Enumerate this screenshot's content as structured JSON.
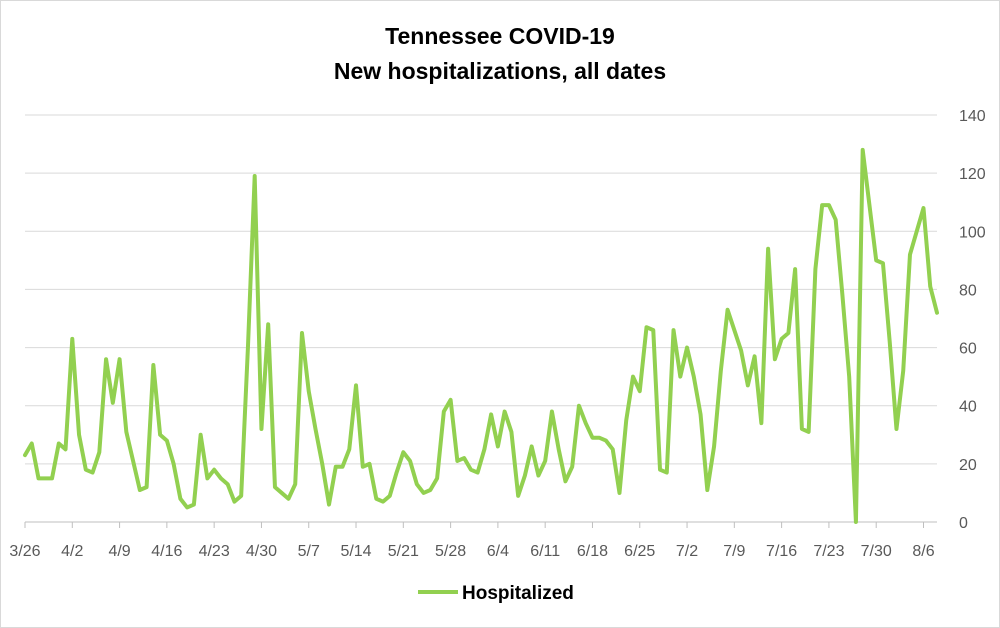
{
  "chart_data": {
    "type": "line",
    "title": "Tennessee COVID-19",
    "subtitle": "New hospitalizations, all dates",
    "xlabel": "",
    "ylabel": "",
    "ylim": [
      0,
      140
    ],
    "yticks": [
      "0",
      "20",
      "40",
      "60",
      "80",
      "100",
      "120",
      "140"
    ],
    "y_axis_side": "right",
    "grid": true,
    "legend": "bottom",
    "xticks": [
      "3/26",
      "4/2",
      "4/9",
      "4/16",
      "4/23",
      "4/30",
      "5/7",
      "5/14",
      "5/21",
      "5/28",
      "6/4",
      "6/11",
      "6/18",
      "6/25",
      "7/2",
      "7/9",
      "7/16",
      "7/23",
      "7/30",
      "8/6"
    ],
    "x_start": "3/26",
    "series": [
      {
        "name": "Hospitalized",
        "color": "#92d050",
        "values": [
          23,
          27,
          15,
          15,
          15,
          27,
          25,
          63,
          30,
          18,
          17,
          24,
          56,
          41,
          56,
          31,
          21,
          11,
          12,
          54,
          30,
          28,
          20,
          8,
          5,
          6,
          30,
          15,
          18,
          15,
          13,
          7,
          9,
          60,
          119,
          32,
          68,
          12,
          10,
          8,
          13,
          65,
          45,
          32,
          20,
          6,
          19,
          19,
          25,
          47,
          19,
          20,
          8,
          7,
          9,
          17,
          24,
          21,
          13,
          10,
          11,
          15,
          38,
          42,
          21,
          22,
          18,
          17,
          25,
          37,
          26,
          38,
          31,
          9,
          16,
          26,
          16,
          21,
          38,
          25,
          14,
          19,
          40,
          34,
          29,
          29,
          28,
          25,
          10,
          35,
          50,
          45,
          67,
          66,
          18,
          17,
          66,
          50,
          60,
          50,
          37,
          11,
          26,
          52,
          73,
          66,
          59,
          47,
          57,
          34,
          94,
          56,
          63,
          65,
          87,
          32,
          31,
          87,
          109,
          109,
          104,
          78,
          50,
          0,
          128,
          109,
          90,
          89,
          62,
          32,
          52,
          92,
          100,
          108,
          81,
          72
        ]
      }
    ]
  }
}
